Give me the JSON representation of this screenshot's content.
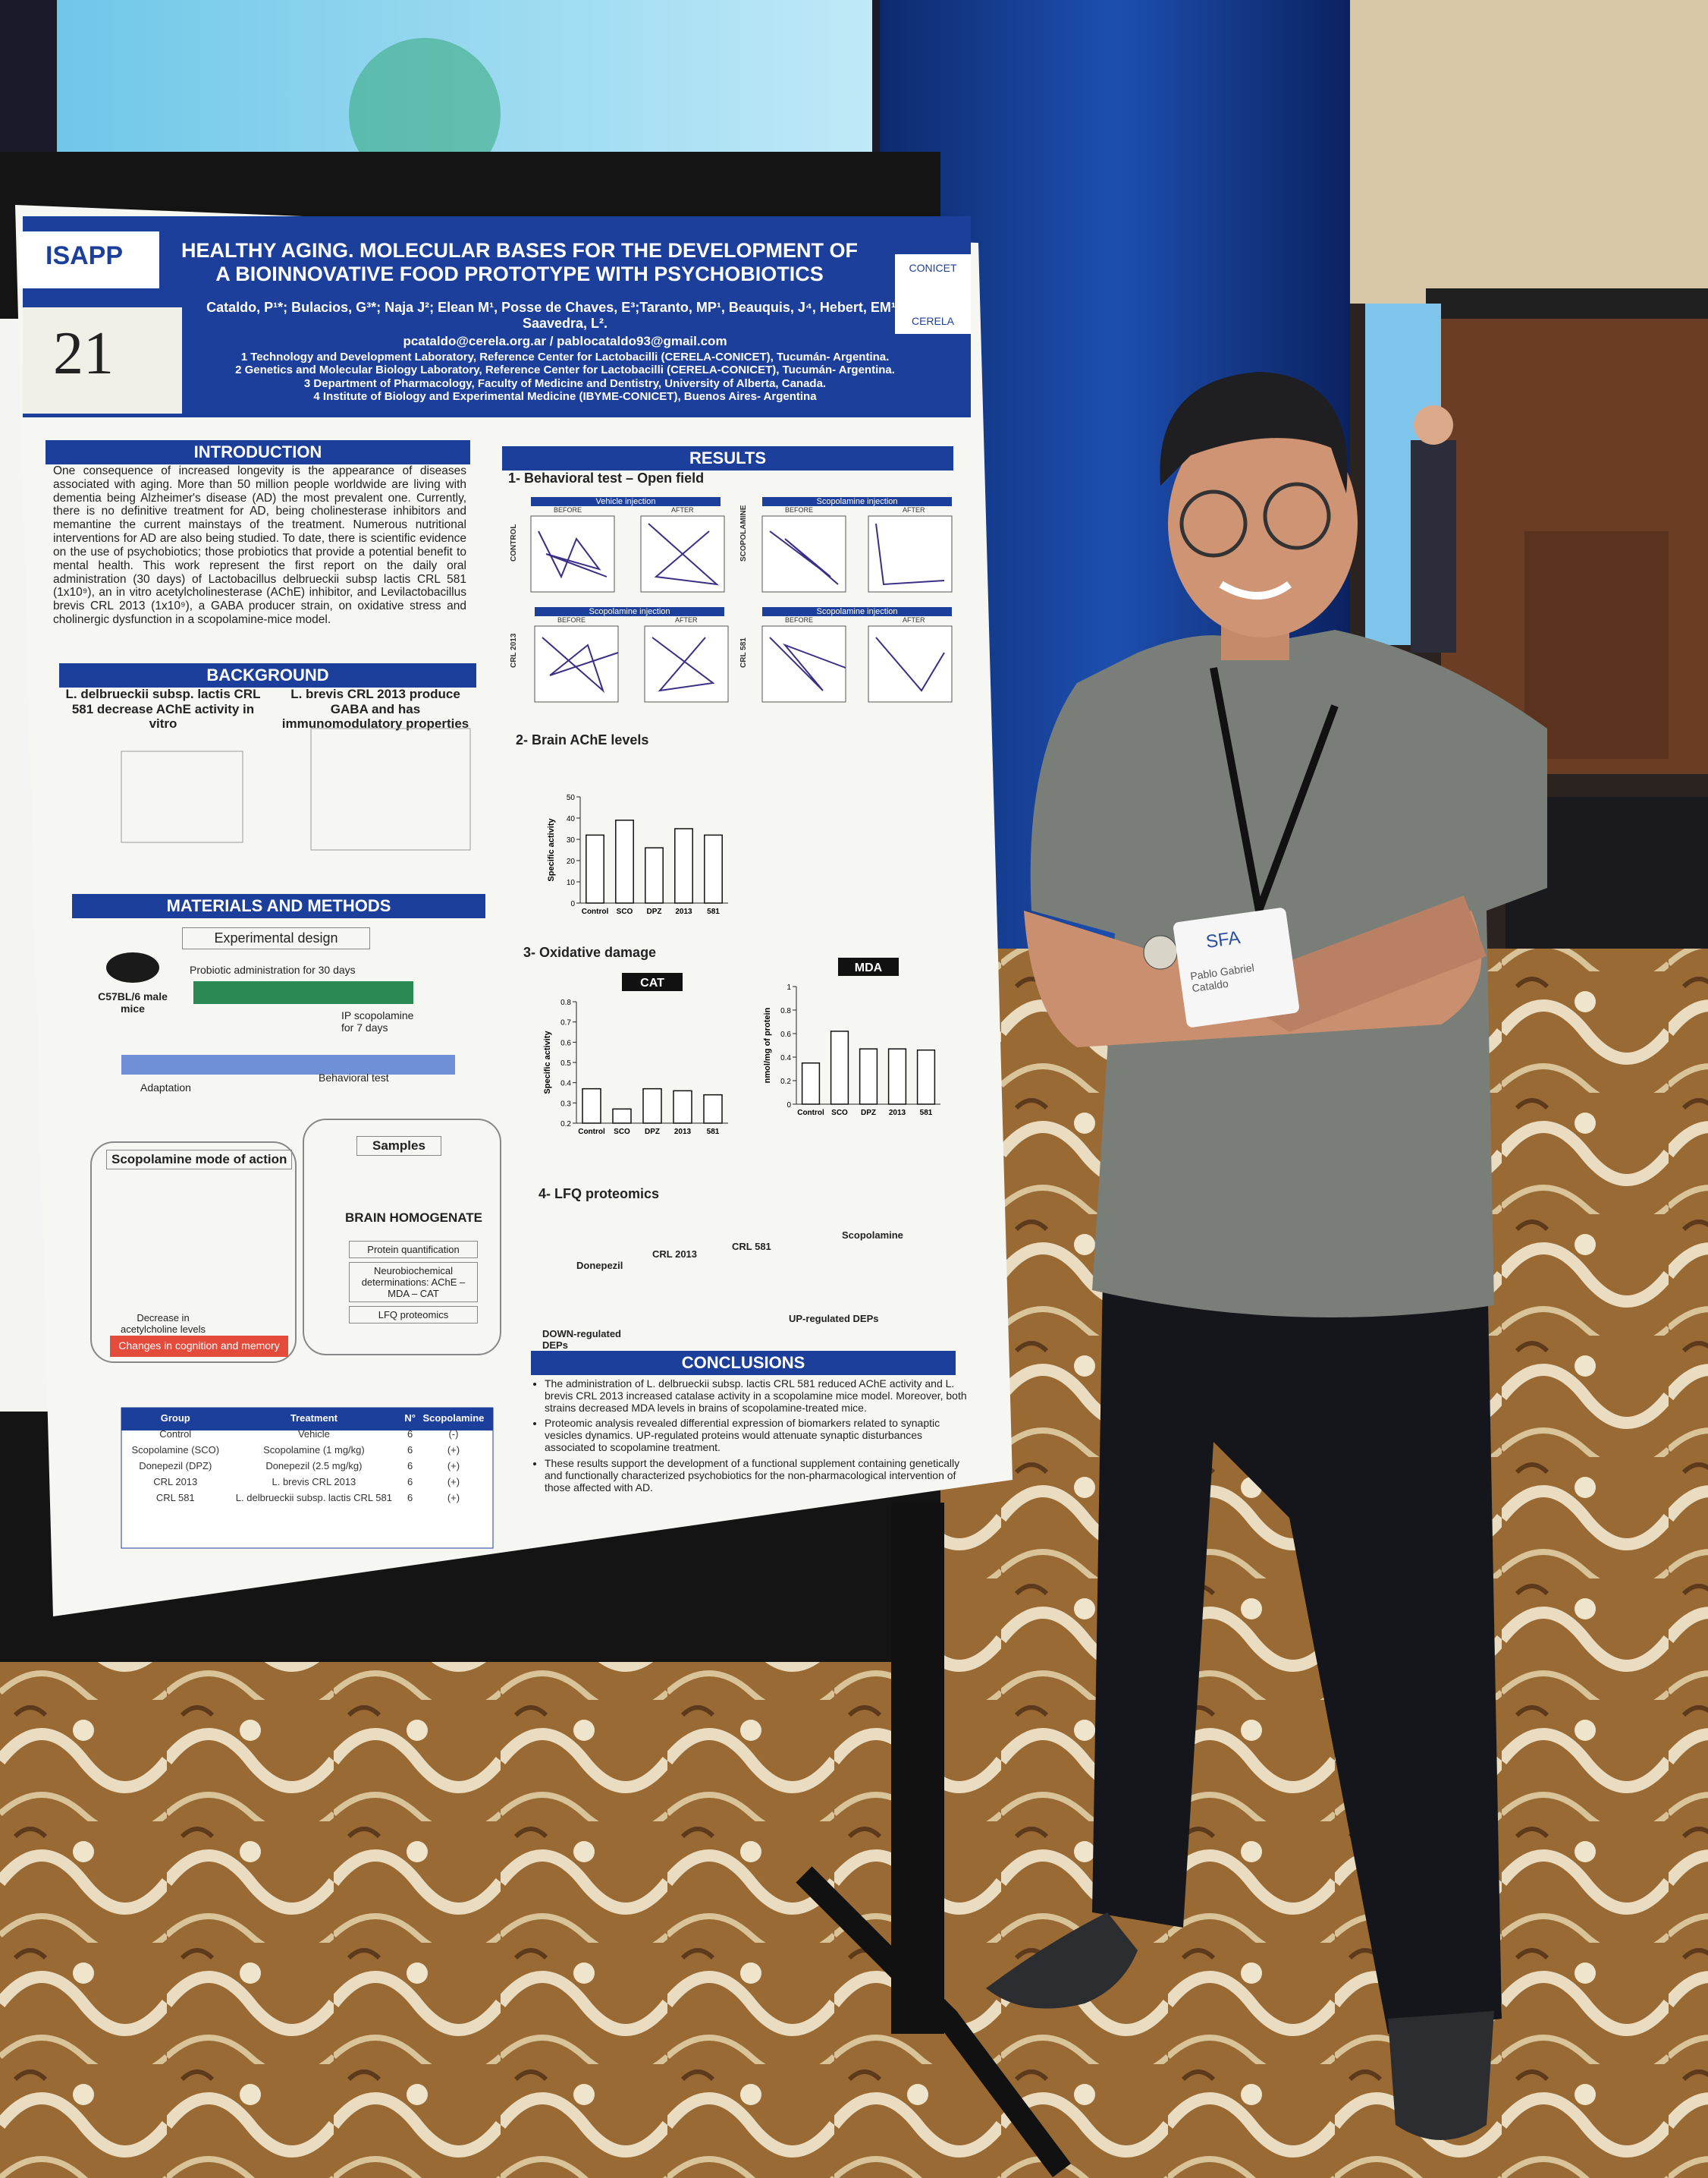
{
  "poster": {
    "logo": "ISAPP",
    "number": "21",
    "title": "HEALTHY AGING. MOLECULAR BASES FOR THE DEVELOPMENT OF A BIOINNOVATIVE FOOD PROTOTYPE WITH PSYCHOBIOTICS",
    "authors": "Cataldo, P¹*; Bulacios, G³*; Naja J²; Elean M¹, Posse de Chaves, E³;Taranto, MP¹, Beauquis, J⁴, Hebert, EM¹ and Saavedra, L².",
    "email": "pcataldo@cerela.org.ar / pablocataldo93@gmail.com",
    "affiliations": [
      "1 Technology and Development Laboratory, Reference Center for Lactobacilli (CERELA-CONICET), Tucumán- Argentina.",
      "2 Genetics and Molecular Biology Laboratory, Reference Center for Lactobacilli (CERELA-CONICET), Tucumán- Argentina.",
      "3 Department of Pharmacology, Faculty of Medicine and Dentistry, University of Alberta, Canada.",
      "4 Institute of Biology and Experimental Medicine (IBYME-CONICET), Buenos Aires- Argentina"
    ],
    "partner_logos": [
      "CONICET",
      "CERELA"
    ],
    "introduction": {
      "heading": "INTRODUCTION",
      "text": "One consequence of increased longevity is the appearance of diseases associated with aging. More than 50 million people worldwide are living with dementia being Alzheimer's disease (AD) the most prevalent one. Currently, there is no definitive treatment for AD, being cholinesterase inhibitors and memantine the current mainstays of the treatment. Numerous nutritional interventions for AD are also being studied. To date, there is scientific evidence on the use of psychobiotics; those probiotics that provide a potential benefit to mental health. This work represent the first report on the daily oral administration (30 days) of Lactobacillus delbrueckii subsp lactis CRL 581 (1x10⁹), an in vitro acetylcholinesterase (AChE) inhibitor, and Levilactobacillus brevis CRL 2013 (1x10⁹), a GABA producer strain, on oxidative stress and cholinergic dysfunction in a scopolamine-mice model."
    },
    "background": {
      "heading": "BACKGROUND",
      "left": "L. delbrueckii subsp. lactis CRL 581 decrease AChE activity in vitro",
      "right": "L. brevis CRL 2013 produce GABA and has immunomodulatory properties"
    },
    "methods": {
      "heading": "MATERIALS AND METHODS",
      "design": "Experimental design",
      "mice": "C57BL/6 male mice",
      "admin": "Probiotic administration for 30 days",
      "ip": "IP scopolamine for 7 days",
      "adaptation": "Adaptation",
      "behavioral": "Behavioral test",
      "mode": "Scopolamine mode of action",
      "samples": "Samples",
      "homogenate": "BRAIN HOMOGENATE",
      "steps": [
        "Protein quantification",
        "Neurobiochemical determinations: AChE – MDA – CAT",
        "LFQ proteomics"
      ],
      "decrease": "Decrease in acetylcholine levels",
      "changes": "Changes in cognition and memory"
    },
    "table": {
      "header": [
        "Group",
        "Treatment",
        "N°",
        "Scopolamine"
      ],
      "rows": [
        [
          "Control",
          "Vehicle",
          "6",
          "(-)"
        ],
        [
          "Scopolamine (SCO)",
          "Scopolamine (1 mg/kg)",
          "6",
          "(+)"
        ],
        [
          "Donepezil (DPZ)",
          "Donepezil (2.5 mg/kg)",
          "6",
          "(+)"
        ],
        [
          "CRL 2013",
          "L. brevis CRL 2013",
          "6",
          "(+)"
        ],
        [
          "CRL 581",
          "L. delbrueckii subsp. lactis CRL 581",
          "6",
          "(+)"
        ]
      ]
    },
    "results": {
      "heading": "RESULTS",
      "sub": [
        "1- Behavioral test – Open field",
        "2- Brain AChE levels",
        "3- Oxidative damage",
        "4- LFQ proteomics"
      ],
      "fields": [
        "Vehicle injection",
        "Scopolamine injection",
        "Scopolamine injection",
        "Scopolamine injection"
      ],
      "rowlabels": [
        "CONTROL",
        "CRL 2013",
        "SCOPOLAMINE",
        "CRL 581"
      ],
      "before_after": [
        "BEFORE",
        "AFTER"
      ],
      "charts": [
        {
          "type": "bar",
          "ylabel": "Specific activity",
          "categories": [
            "Control",
            "SCO",
            "DPZ",
            "2013",
            "581"
          ],
          "values": [
            32,
            39,
            26,
            35,
            32
          ],
          "ylim": [
            0,
            50
          ],
          "yticks": [
            0,
            10,
            20,
            30,
            40,
            50
          ],
          "color": "#ffffff"
        },
        {
          "type": "bar",
          "title": "CAT",
          "ylabel": "Specific activity",
          "categories": [
            "Control",
            "SCO",
            "DPZ",
            "2013",
            "581"
          ],
          "values": [
            0.37,
            0.27,
            0.37,
            0.36,
            0.34
          ],
          "ylim": [
            0.2,
            0.8
          ],
          "yticks": [
            0.2,
            0.3,
            0.4,
            0.5,
            0.6,
            0.7,
            0.8
          ],
          "color": "#ffffff"
        },
        {
          "type": "bar",
          "title": "MDA",
          "ylabel": "nmol/mg of protein",
          "categories": [
            "Control",
            "SCO",
            "DPZ",
            "2013",
            "581"
          ],
          "values": [
            0.35,
            0.62,
            0.47,
            0.47,
            0.46
          ],
          "ylim": [
            0,
            1
          ],
          "yticks": [
            0,
            0.2,
            0.4,
            0.6,
            0.8,
            1
          ],
          "color": "#ffffff"
        }
      ],
      "proteomics": [
        "Donepezil",
        "CRL 2013",
        "CRL 581",
        "Scopolamine",
        "DOWN-regulated DEPs",
        "UP-regulated DEPs"
      ]
    },
    "conclusions": {
      "heading": "CONCLUSIONS",
      "items": [
        "The administration of L. delbrueckii subsp. lactis CRL 581 reduced AChE activity and L. brevis CRL 2013 increased catalase activity in a scopolamine mice model. Moreover, both strains decreased MDA levels in brains of scopolamine-treated mice.",
        "Proteomic analysis revealed differential expression of biomarkers related to synaptic vesicles dynamics. UP-regulated proteins would attenuate synaptic disturbances associated to scopolamine treatment.",
        "These results support the development of a functional supplement containing genetically and functionally characterized psychobiotics for the non-pharmacological intervention of those affected with AD."
      ]
    }
  },
  "badge": {
    "logo": "SFA",
    "name": "Pablo Gabriel Cataldo"
  }
}
